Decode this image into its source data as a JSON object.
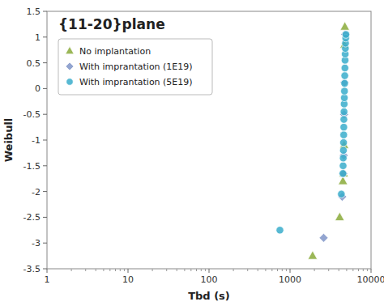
{
  "chart_data": {
    "type": "scatter",
    "title": "{11-20}plane",
    "x_label": "Tbd (s)",
    "y_label": "Weibull",
    "log": "x",
    "xlim": [
      1,
      10000
    ],
    "ylim": [
      -3.5,
      1.5
    ],
    "xticks": [
      1,
      10,
      100,
      1000,
      10000
    ],
    "yticks": [
      -3.5,
      -3,
      -2.5,
      -2,
      -1.5,
      -1,
      -0.5,
      0,
      0.5,
      1,
      1.5
    ],
    "grid": false,
    "legend": "upper left",
    "series": [
      {
        "name": "No implantation",
        "color": "#8aaa3a",
        "marker": "triangle",
        "x": [
          1900,
          4100,
          4500,
          4600,
          4650,
          4700,
          4750
        ],
        "values": [
          -3.25,
          -2.5,
          -1.8,
          -1.65,
          -1.1,
          0.85,
          1.2
        ]
      },
      {
        "name": "With imprantation (1E19)",
        "color": "#8095c8",
        "marker": "diamond",
        "x": [
          2600,
          4400,
          4550,
          4600,
          4650,
          4700,
          4800
        ],
        "values": [
          -2.9,
          -2.1,
          -1.65,
          -1.3,
          -0.5,
          0.12,
          1.05
        ]
      },
      {
        "name": "With imprantation (5E19)",
        "color": "#3aadcb",
        "marker": "circle",
        "x": [
          750,
          4300,
          4500,
          4520,
          4540,
          4560,
          4580,
          4600,
          4610,
          4620,
          4640,
          4660,
          4680,
          4700,
          4720,
          4740,
          4760,
          4780,
          4800,
          4820,
          4840,
          4870,
          4900
        ],
        "values": [
          -2.75,
          -2.05,
          -1.65,
          -1.5,
          -1.35,
          -1.2,
          -1.05,
          -0.9,
          -0.75,
          -0.6,
          -0.45,
          -0.3,
          -0.18,
          -0.05,
          0.1,
          0.25,
          0.4,
          0.55,
          0.67,
          0.78,
          0.88,
          0.98,
          1.05
        ]
      }
    ]
  }
}
